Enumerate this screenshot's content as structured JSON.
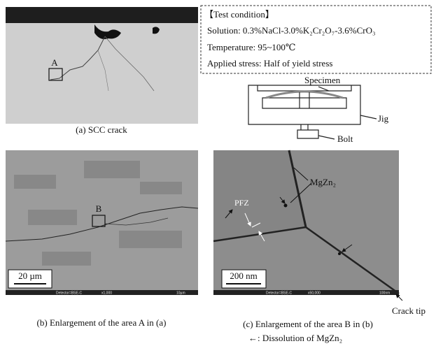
{
  "panel_a": {
    "caption": "(a) SCC crack",
    "box_label": "A"
  },
  "test_condition": {
    "title": "【Test condition】",
    "lines": [
      "Solution: 0.3%NaCl-3.0%K₂Cr₂O₇-3.6%CrO₃",
      "Temperature: 95~100℃",
      "Applied stress: Half of yield stress"
    ]
  },
  "jig_diagram": {
    "specimen": "Specimen",
    "jig": "Jig",
    "bolt": "Bolt"
  },
  "panel_b": {
    "caption": "(b) Enlargement of the area A in (a)",
    "box_label": "B",
    "scale_bar": "20 µm",
    "info_bar": [
      "Detector=BSE-C",
      "x1,000",
      "10µm"
    ]
  },
  "panel_c": {
    "caption": "(c) Enlargement of the area B in (b)",
    "scale_bar": "200 nm",
    "mgzn2": "MgZn₂",
    "pfz": "PFZ",
    "crack_tip": "Crack tip",
    "info_bar": [
      "Detector=BSE-C",
      "x50,000",
      "100nm"
    ]
  },
  "legend": "←: Dissolution of MgZn₂"
}
